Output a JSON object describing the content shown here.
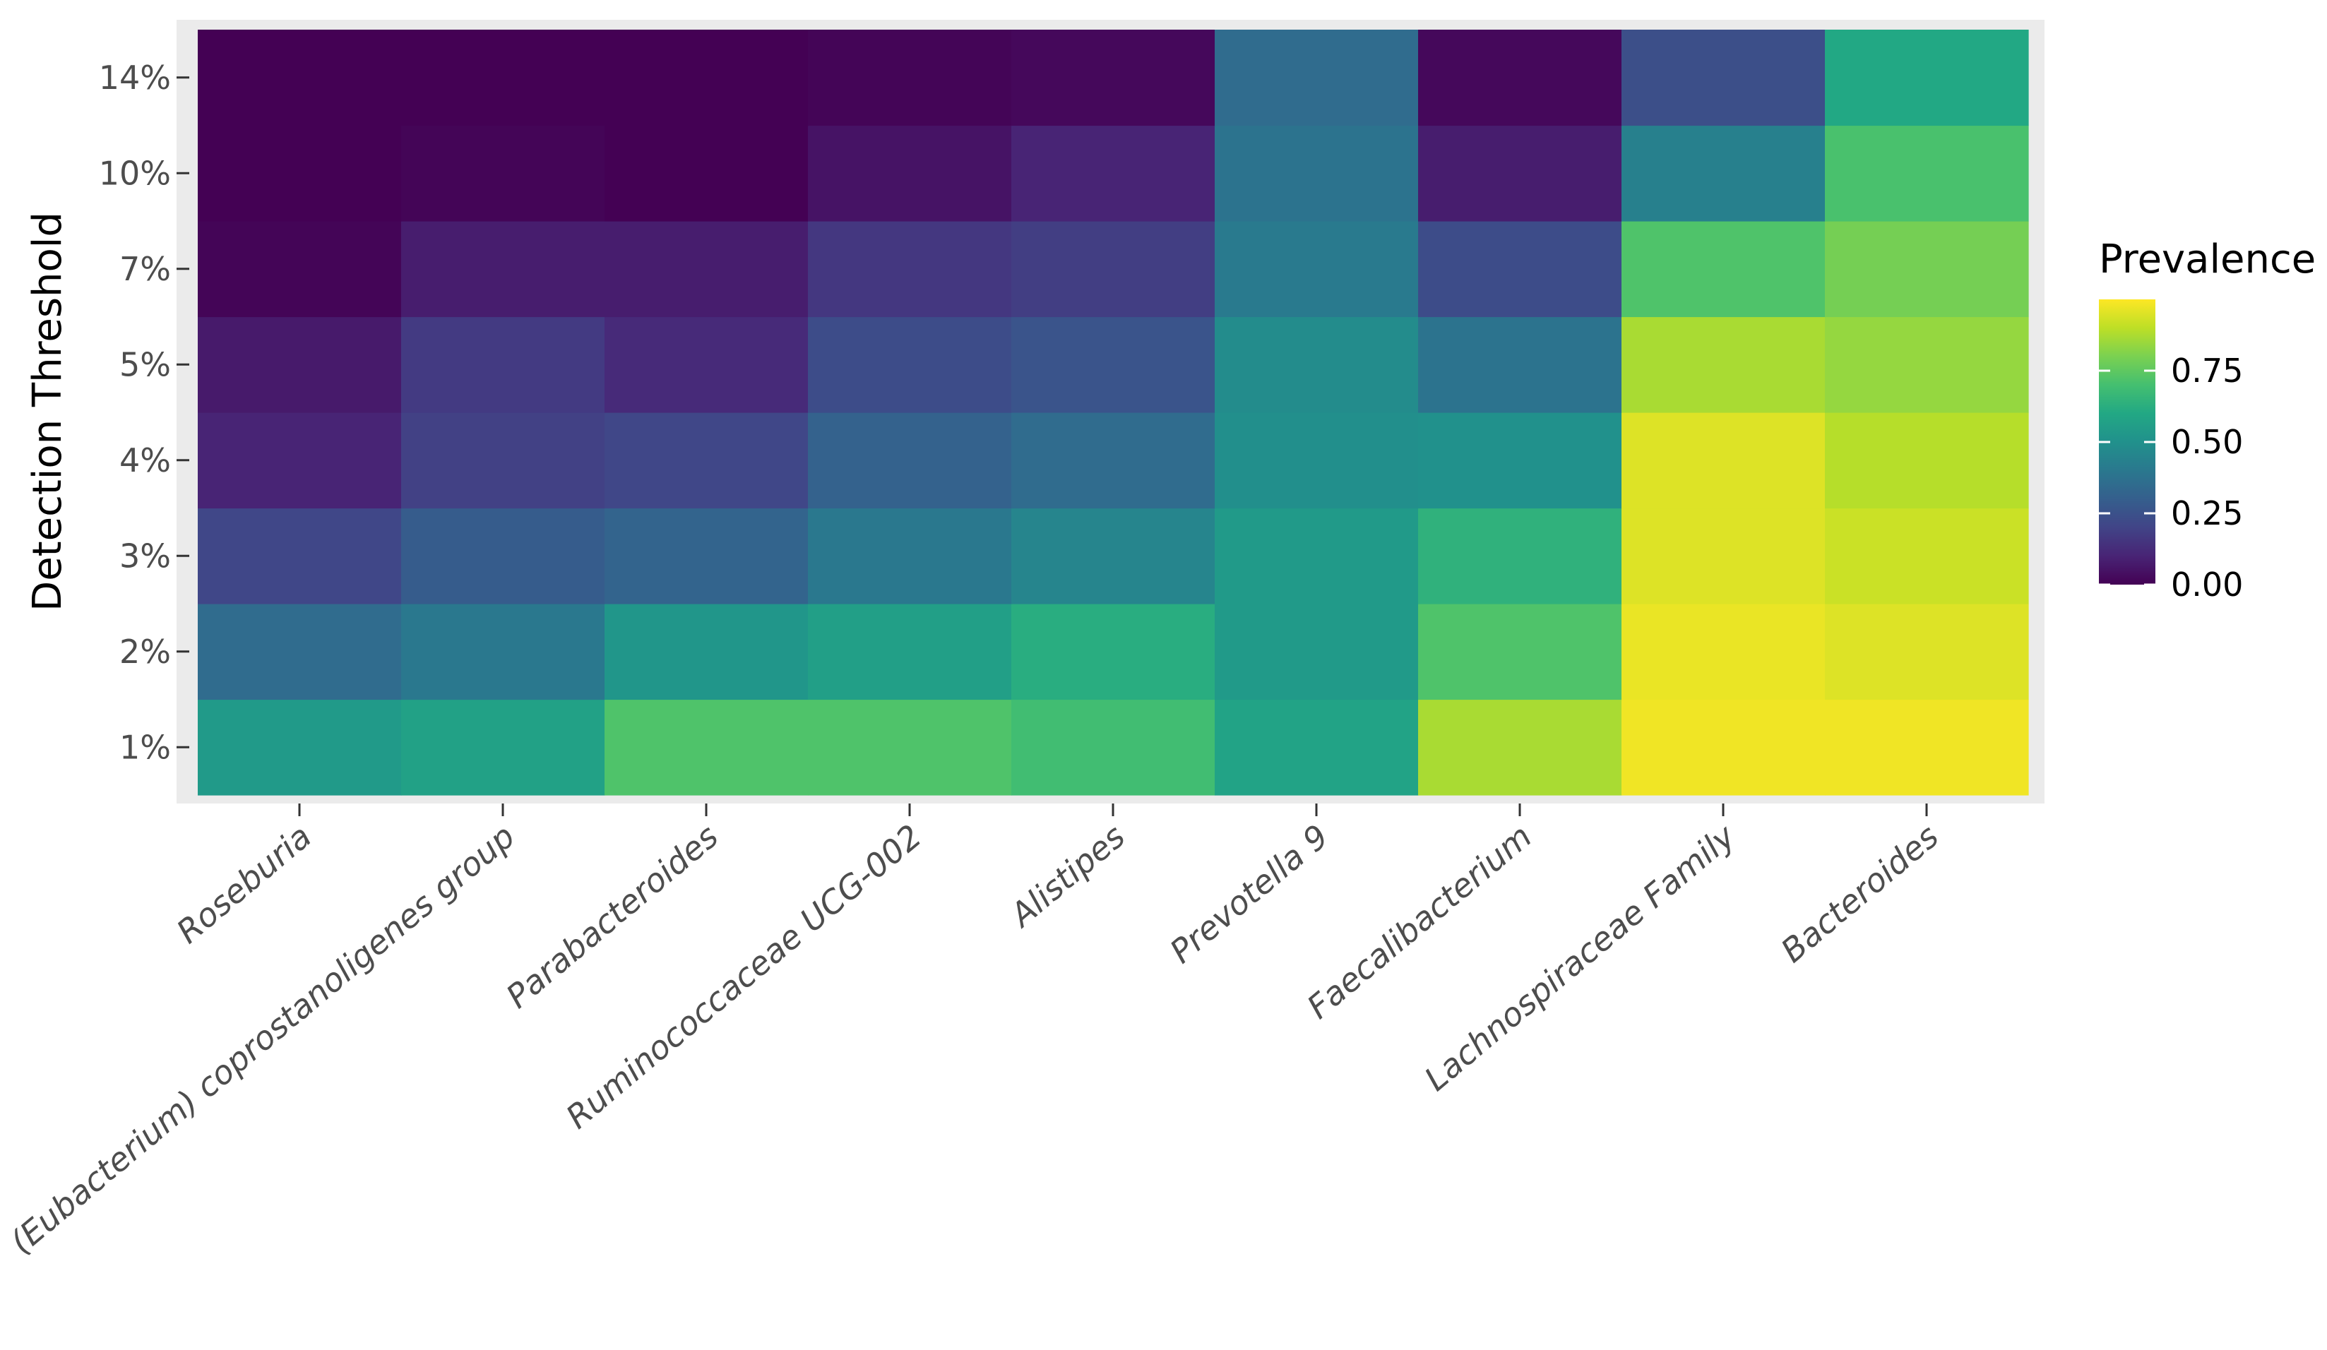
{
  "chart_data": {
    "type": "heatmap",
    "title": "",
    "xlabel": "",
    "ylabel": "Detection Threshold",
    "x_categories": [
      "Roseburia",
      "(Eubacterium) coprostanoligenes group",
      "Parabacteroides",
      "Ruminococcaceae UCG-002",
      "Alistipes",
      "Prevotella 9",
      "Faecalibacterium",
      "Lachnospiraceae Family",
      "Bacteroides"
    ],
    "y_categories": [
      "1%",
      "2%",
      "3%",
      "4%",
      "5%",
      "7%",
      "10%",
      "14%"
    ],
    "values": [
      [
        0.54,
        0.57,
        0.72,
        0.72,
        0.69,
        0.58,
        0.87,
        0.98,
        0.98
      ],
      [
        0.35,
        0.4,
        0.52,
        0.56,
        0.62,
        0.54,
        0.72,
        0.97,
        0.95
      ],
      [
        0.21,
        0.29,
        0.32,
        0.4,
        0.45,
        0.54,
        0.64,
        0.95,
        0.92
      ],
      [
        0.1,
        0.19,
        0.21,
        0.31,
        0.35,
        0.49,
        0.5,
        0.95,
        0.89
      ],
      [
        0.07,
        0.17,
        0.12,
        0.23,
        0.26,
        0.48,
        0.38,
        0.87,
        0.84
      ],
      [
        0.01,
        0.08,
        0.08,
        0.16,
        0.18,
        0.41,
        0.23,
        0.72,
        0.79
      ],
      [
        0.0,
        0.01,
        0.0,
        0.05,
        0.1,
        0.38,
        0.08,
        0.43,
        0.71
      ],
      [
        0.0,
        0.0,
        0.0,
        0.01,
        0.02,
        0.35,
        0.02,
        0.24,
        0.6
      ]
    ],
    "legend": {
      "title": "Prevalence",
      "ticks": [
        {
          "value": 0.0,
          "label": "0.00"
        },
        {
          "value": 0.25,
          "label": "0.25"
        },
        {
          "value": 0.5,
          "label": "0.50"
        },
        {
          "value": 0.75,
          "label": "0.75"
        }
      ],
      "range": [
        0,
        1
      ],
      "placement": "right"
    },
    "colormap": "viridis",
    "panel_background": "#ebebeb",
    "grid": true
  }
}
